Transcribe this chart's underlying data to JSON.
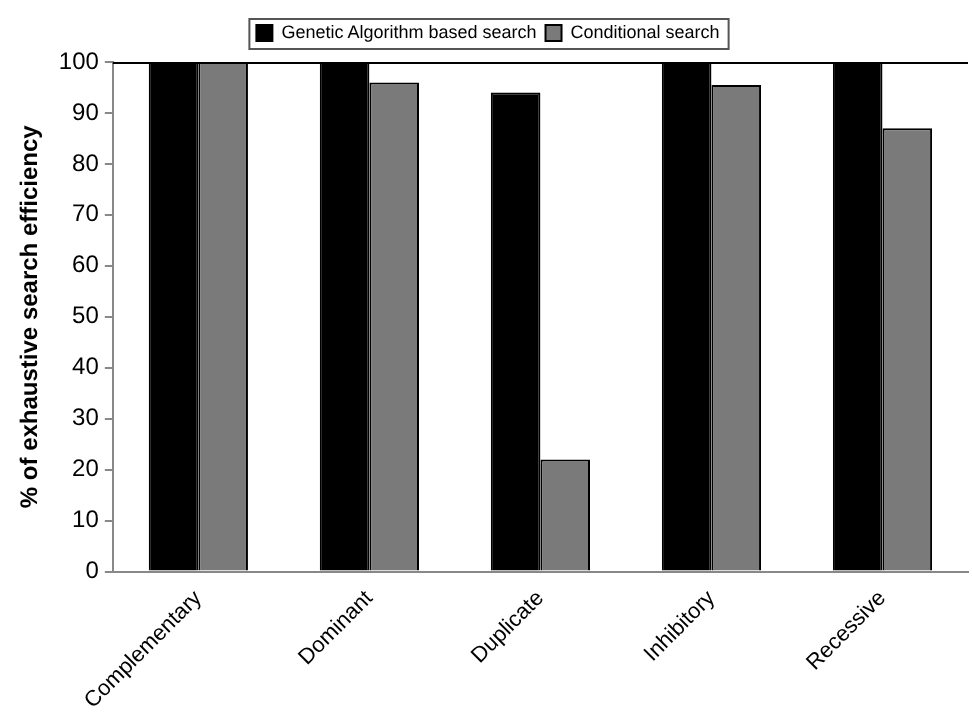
{
  "chart_data": {
    "type": "bar",
    "ylabel": "% of exhaustive search efficiency",
    "categories": [
      "Complementary",
      "Dominant",
      "Duplicate",
      "Inhibitory",
      "Recessive"
    ],
    "series": [
      {
        "name": "Genetic Algorithm based search",
        "color": "#000000",
        "values": [
          100,
          100,
          94,
          100,
          100
        ]
      },
      {
        "name": "Conditional search",
        "color": "#7a7a7a",
        "values": [
          100,
          96,
          22,
          95.5,
          87
        ]
      }
    ],
    "ylim": [
      0,
      100
    ],
    "yticks": [
      0,
      10,
      20,
      30,
      40,
      50,
      60,
      70,
      80,
      90,
      100
    ],
    "grid": false,
    "legend": "top"
  }
}
